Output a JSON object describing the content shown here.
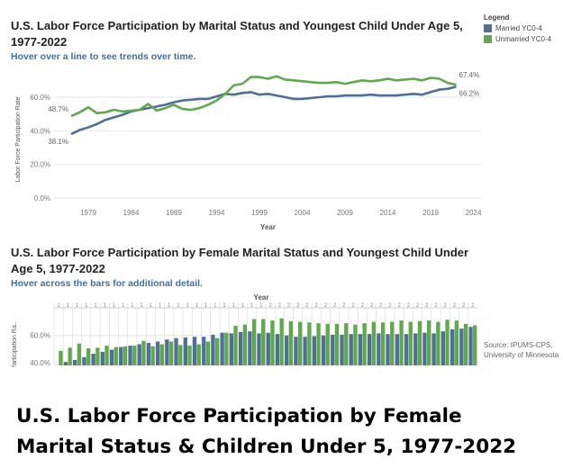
{
  "chart_data": [
    {
      "type": "line",
      "title": "U.S. Labor Force Participation by Marital Status and Youngest Child Under Age 5, 1977-2022",
      "subtitle": "Hover over a line to see trends over time.",
      "xlabel": "Year",
      "ylabel": "Labor Force Participation Rate",
      "x_ticks": [
        "1979",
        "1984",
        "1989",
        "1994",
        "1999",
        "2004",
        "2009",
        "2014",
        "2019",
        "2024"
      ],
      "y_ticks": [
        "0.0%",
        "20.0%",
        "40.0%",
        "60.0%"
      ],
      "xlim": [
        1975,
        2025
      ],
      "ylim": [
        0,
        75
      ],
      "legend": {
        "title": "Legend",
        "position": "top-right"
      },
      "x": [
        1977,
        1978,
        1979,
        1980,
        1981,
        1982,
        1983,
        1984,
        1985,
        1986,
        1987,
        1988,
        1989,
        1990,
        1991,
        1992,
        1993,
        1994,
        1995,
        1996,
        1997,
        1998,
        1999,
        2000,
        2001,
        2002,
        2003,
        2004,
        2005,
        2006,
        2007,
        2008,
        2009,
        2010,
        2011,
        2012,
        2013,
        2014,
        2015,
        2016,
        2017,
        2018,
        2019,
        2020,
        2021,
        2022
      ],
      "series": [
        {
          "name": "Married YC0-4",
          "color": "#4e6f96",
          "values": [
            38.1,
            40.5,
            42.0,
            44.0,
            46.5,
            48.0,
            49.5,
            51.5,
            52.5,
            53.5,
            54.5,
            55.5,
            57.0,
            58.0,
            58.5,
            59.0,
            59.0,
            60.5,
            62.0,
            61.5,
            62.5,
            63.0,
            61.5,
            62.0,
            61.0,
            60.0,
            59.0,
            59.0,
            59.5,
            60.0,
            60.5,
            60.5,
            61.0,
            61.0,
            61.0,
            61.5,
            61.0,
            61.0,
            61.0,
            61.5,
            62.0,
            61.5,
            63.0,
            64.5,
            65.0,
            66.2
          ],
          "end_label": "66.2%",
          "start_label": "38.1%"
        },
        {
          "name": "Unmarried YC0-4",
          "color": "#5fa84d",
          "values": [
            48.7,
            51.0,
            54.0,
            50.5,
            51.0,
            52.5,
            51.5,
            52.0,
            52.5,
            56.0,
            52.0,
            53.5,
            55.5,
            53.0,
            52.5,
            53.5,
            55.5,
            58.0,
            62.0,
            67.0,
            68.0,
            72.0,
            72.0,
            71.0,
            72.5,
            70.5,
            70.0,
            69.5,
            69.0,
            68.5,
            68.5,
            69.0,
            68.0,
            69.0,
            70.0,
            69.5,
            70.0,
            71.0,
            70.0,
            70.5,
            71.0,
            70.0,
            71.5,
            71.0,
            68.5,
            67.4
          ],
          "end_label": "67.4%",
          "start_label": "48.7%"
        }
      ]
    },
    {
      "type": "bar",
      "title": "U.S. Labor Force Participation by Female Marital Status and Youngest Child Under Age 5, 1977-2022",
      "subtitle": "Hover across the bars for additional detail.",
      "header": "Year",
      "ylabel": "Participation Ra..",
      "y_ticks": [
        "60.0%",
        "40.0%"
      ],
      "ylim": [
        38,
        75
      ],
      "series": [
        {
          "name": "Married YC0-4",
          "color": "#4e6f96"
        },
        {
          "name": "Unmarried YC0-4",
          "color": "#5fa84d"
        }
      ]
    }
  ],
  "source": {
    "lines": [
      "Source: IPUMS-CPS,",
      "University of Minnesota"
    ]
  },
  "caption": {
    "line1": "U.S. Labor Force Participation by Female",
    "line2": "Marital Status & Children Under 5, 1977-2022"
  }
}
